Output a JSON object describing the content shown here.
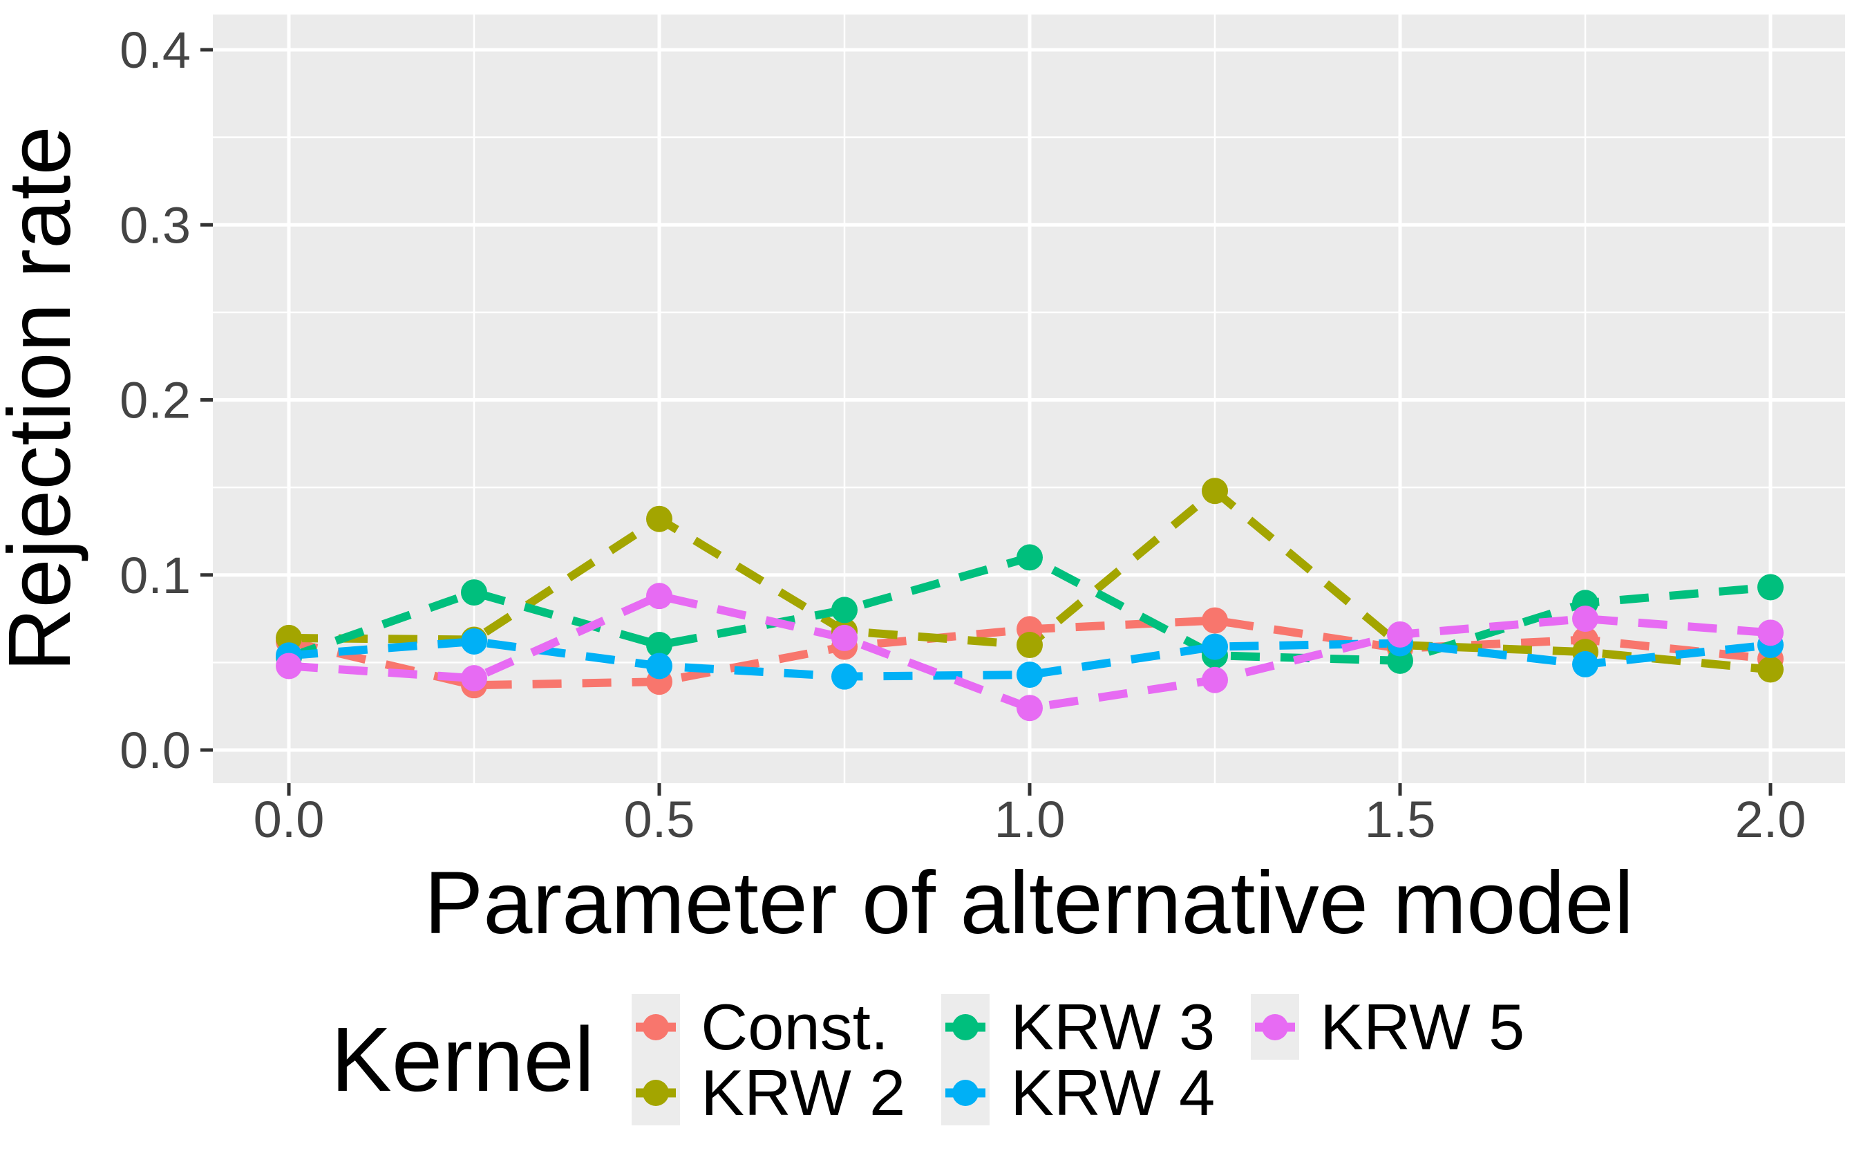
{
  "chart_data": {
    "type": "line",
    "title": "",
    "xlabel": "Parameter of alternative model",
    "ylabel": "Rejection rate",
    "line_style": "dashed",
    "marker": "point",
    "grid": true,
    "legend_position": "bottom",
    "xlim": [
      -0.105,
      2.105
    ],
    "ylim": [
      -0.019,
      0.42
    ],
    "x": [
      0,
      0.25,
      0.5,
      0.75,
      1,
      1.25,
      1.5,
      1.75,
      2
    ],
    "series": [
      {
        "name": "Const.",
        "color": "#F8766D",
        "values": [
          0.062,
          0.037,
          0.039,
          0.059,
          0.069,
          0.074,
          0.058,
          0.063,
          0.052
        ]
      },
      {
        "name": "KRW 2",
        "color": "#A3A500",
        "values": [
          0.064,
          0.063,
          0.132,
          0.068,
          0.06,
          0.148,
          0.06,
          0.056,
          0.046
        ]
      },
      {
        "name": "KRW 3",
        "color": "#00BF7D",
        "values": [
          0.053,
          0.09,
          0.06,
          0.08,
          0.11,
          0.054,
          0.051,
          0.084,
          0.093
        ]
      },
      {
        "name": "KRW 4",
        "color": "#00B0F6",
        "values": [
          0.054,
          0.062,
          0.048,
          0.042,
          0.043,
          0.059,
          0.061,
          0.049,
          0.06
        ]
      },
      {
        "name": "KRW 5",
        "color": "#E76BF3",
        "values": [
          0.048,
          0.041,
          0.088,
          0.064,
          0.024,
          0.04,
          0.066,
          0.075,
          0.067
        ]
      }
    ],
    "x_ticks": {
      "values": [
        0,
        0.5,
        1,
        1.5,
        2
      ],
      "labels": [
        "0.0",
        "0.5",
        "1.0",
        "1.5",
        "2.0"
      ]
    },
    "y_ticks": {
      "values": [
        0,
        0.1,
        0.2,
        0.3,
        0.4
      ],
      "labels": [
        "0.0",
        "0.1",
        "0.2",
        "0.3",
        "0.4"
      ]
    },
    "x_minor": [
      0.25,
      0.75,
      1.25,
      1.75
    ],
    "y_minor": [
      0.05,
      0.15,
      0.25,
      0.35
    ],
    "panel_bg": "#EBEBEB",
    "grid_color": "#FFFFFF",
    "tick_mark_color": "#333333",
    "tick_text_color": "#444444",
    "title_text_color": "#000000"
  },
  "legend": {
    "title": "Kernel",
    "columns": [
      [
        0,
        1
      ],
      [
        2,
        3
      ],
      [
        4
      ]
    ]
  }
}
